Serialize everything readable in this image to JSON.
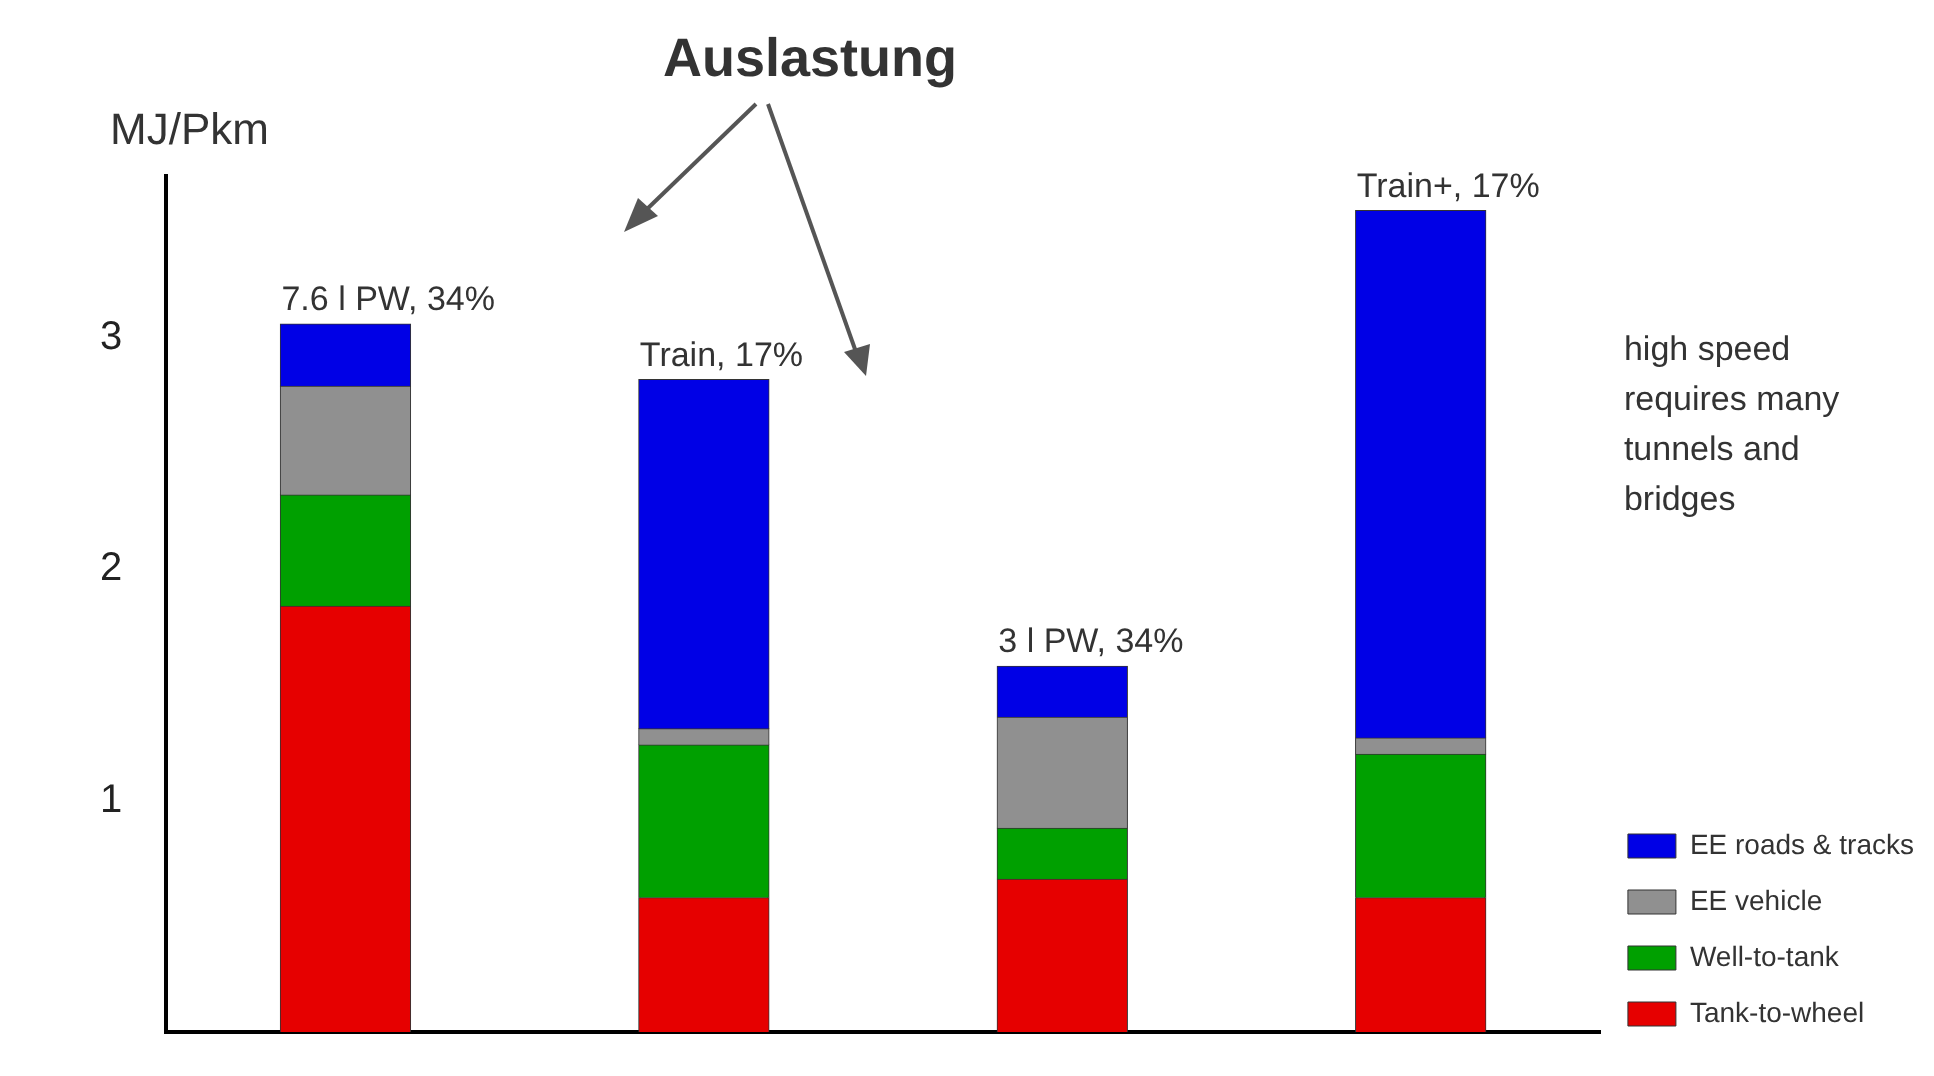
{
  "chart_data": {
    "type": "bar",
    "stacked": true,
    "title": "Auslastung",
    "ylabel": "MJ/Pkm",
    "categories": [
      null,
      null,
      null,
      null
    ],
    "series": [
      {
        "name": "Tank-to-wheel",
        "color": "#e60000",
        "values": [
          1.84,
          0.58,
          0.66,
          0.58
        ]
      },
      {
        "name": "Well-to-tank",
        "color": "#00a000",
        "values": [
          0.48,
          0.66,
          0.22,
          0.62
        ]
      },
      {
        "name": "EE vehicle",
        "color": "#909090",
        "values": [
          0.47,
          0.07,
          0.48,
          0.07
        ]
      },
      {
        "name": "EE roads & tracks",
        "color": "#0000e6",
        "values": [
          0.27,
          1.51,
          0.22,
          2.28
        ]
      }
    ],
    "ylim": [
      0,
      3.7
    ],
    "yticks": [
      1,
      2,
      3
    ],
    "grid": false,
    "legend": "bottom right",
    "tick_labels": "y",
    "annotations": [
      "7.6 l PW, 34%",
      "Train, 17%",
      "3 l PW, 34%",
      "Train+, 17%",
      "high speed\nrequires many\ntunnels and\nbridges"
    ]
  }
}
